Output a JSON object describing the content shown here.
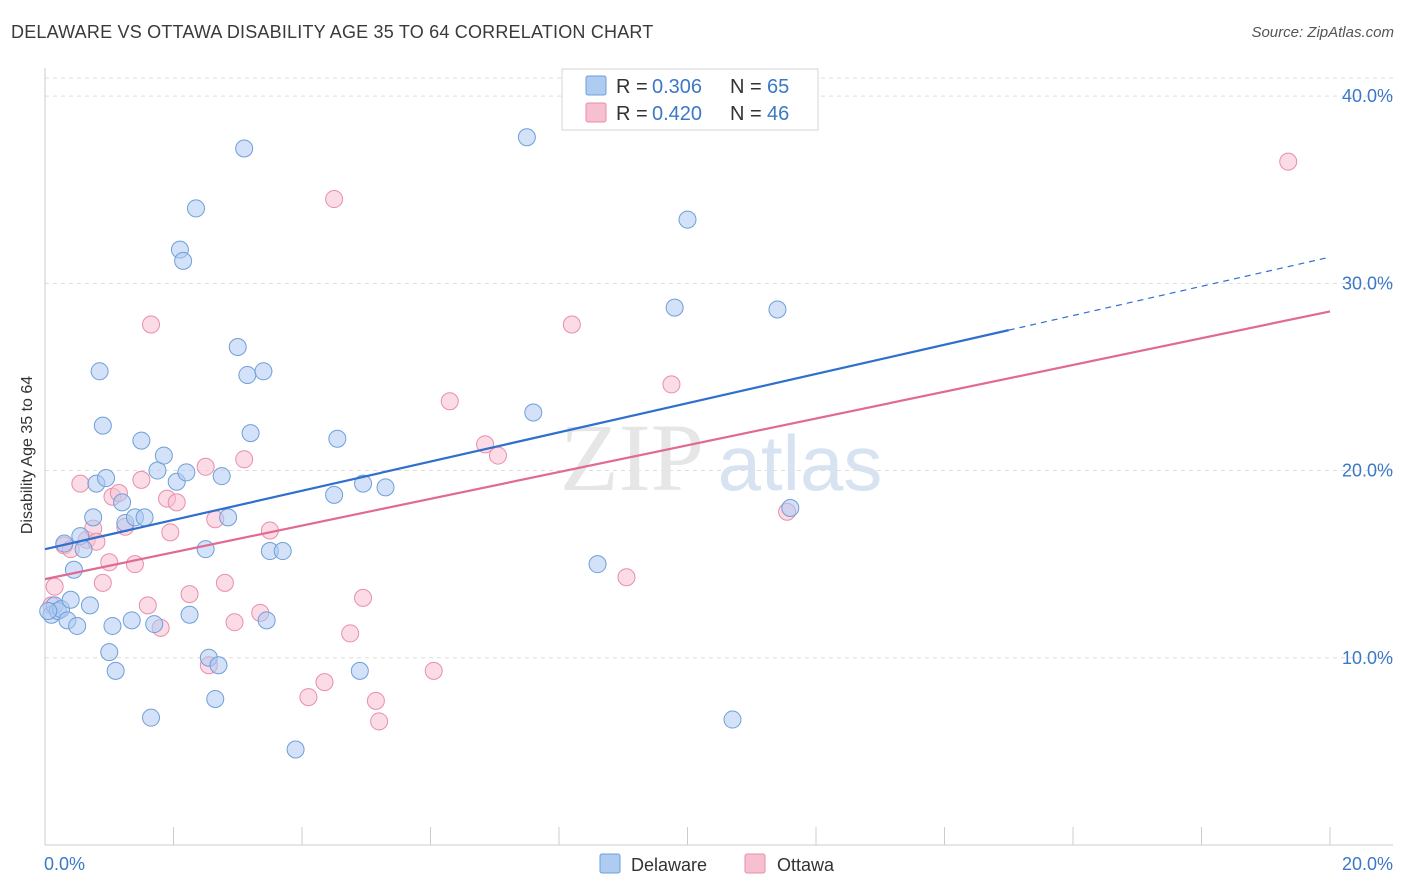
{
  "title": "DELAWARE VS OTTAWA DISABILITY AGE 35 TO 64 CORRELATION CHART",
  "source": "Source: ZipAtlas.com",
  "watermark": {
    "zip": "ZIP",
    "atlas": "atlas"
  },
  "colors": {
    "delaware_fill": "#aecbf2",
    "delaware_stroke": "#6f9fd8",
    "delaware_line": "#2f6fcd",
    "ottawa_fill": "#f7c0d1",
    "ottawa_stroke": "#e98ea9",
    "ottawa_line": "#e06a92",
    "axis_label": "#3b78c6",
    "grid": "#dddddd"
  },
  "legend": {
    "entries": [
      {
        "r_label": "R =",
        "r_value": "0.306",
        "n_label": "N =",
        "n_value": "65"
      },
      {
        "r_label": "R =",
        "r_value": "0.420",
        "n_label": "N =",
        "n_value": "46"
      }
    ]
  },
  "chart_data": {
    "type": "scatter",
    "title": "DELAWARE VS OTTAWA DISABILITY AGE 35 TO 64 CORRELATION CHART",
    "xlabel": "",
    "ylabel": "Disability Age 35 to 64",
    "xlim": [
      0,
      20
    ],
    "ylim": [
      0,
      41.5
    ],
    "x_ticks": [
      0,
      2,
      4,
      6,
      8,
      10,
      12,
      14,
      16,
      18,
      20
    ],
    "x_tick_labels": [
      {
        "value": 0,
        "label": "0.0%"
      },
      {
        "value": 20,
        "label": "20.0%"
      }
    ],
    "y_ticks": [
      {
        "value": 10,
        "label": "10.0%"
      },
      {
        "value": 20,
        "label": "20.0%"
      },
      {
        "value": 30,
        "label": "30.0%"
      },
      {
        "value": 40,
        "label": "40.0%"
      }
    ],
    "grid": true,
    "legend_position": "bottom",
    "series": [
      {
        "name": "Delaware",
        "r": 0.306,
        "n": 65,
        "trend": {
          "x0": 0,
          "y0": 15.8,
          "x1": 15.0,
          "y1": 27.5,
          "dash_to_x": 20,
          "dash_to_y": 31.4
        },
        "points": [
          [
            0.1,
            12.3
          ],
          [
            0.15,
            12.8
          ],
          [
            0.2,
            12.5
          ],
          [
            0.25,
            12.6
          ],
          [
            0.3,
            16.1
          ],
          [
            0.35,
            12.0
          ],
          [
            0.4,
            13.1
          ],
          [
            0.45,
            14.7
          ],
          [
            0.5,
            11.7
          ],
          [
            0.55,
            16.5
          ],
          [
            0.6,
            15.8
          ],
          [
            0.7,
            12.8
          ],
          [
            0.75,
            17.5
          ],
          [
            0.8,
            19.3
          ],
          [
            0.85,
            25.3
          ],
          [
            0.9,
            22.4
          ],
          [
            0.95,
            19.6
          ],
          [
            1.0,
            10.3
          ],
          [
            1.05,
            11.7
          ],
          [
            1.1,
            9.3
          ],
          [
            1.2,
            18.3
          ],
          [
            1.25,
            17.2
          ],
          [
            1.35,
            12.0
          ],
          [
            1.4,
            17.5
          ],
          [
            1.5,
            21.6
          ],
          [
            1.55,
            17.5
          ],
          [
            1.65,
            6.8
          ],
          [
            1.7,
            11.8
          ],
          [
            1.75,
            20.0
          ],
          [
            1.85,
            20.8
          ],
          [
            2.05,
            19.4
          ],
          [
            2.1,
            31.8
          ],
          [
            2.15,
            31.2
          ],
          [
            2.2,
            19.9
          ],
          [
            2.25,
            12.3
          ],
          [
            2.35,
            34.0
          ],
          [
            2.5,
            15.8
          ],
          [
            2.55,
            10.0
          ],
          [
            2.65,
            7.8
          ],
          [
            2.7,
            9.6
          ],
          [
            2.75,
            19.7
          ],
          [
            2.85,
            17.5
          ],
          [
            3.0,
            26.6
          ],
          [
            3.1,
            37.2
          ],
          [
            3.15,
            25.1
          ],
          [
            3.2,
            22.0
          ],
          [
            3.4,
            25.3
          ],
          [
            3.45,
            12.0
          ],
          [
            3.5,
            15.7
          ],
          [
            3.7,
            15.7
          ],
          [
            3.9,
            5.1
          ],
          [
            4.5,
            18.7
          ],
          [
            4.55,
            21.7
          ],
          [
            4.9,
            9.3
          ],
          [
            4.95,
            19.3
          ],
          [
            5.3,
            19.1
          ],
          [
            7.5,
            37.8
          ],
          [
            7.6,
            23.1
          ],
          [
            8.6,
            15.0
          ],
          [
            9.8,
            28.7
          ],
          [
            10.0,
            33.4
          ],
          [
            10.7,
            6.7
          ],
          [
            11.4,
            28.6
          ],
          [
            11.6,
            18.0
          ],
          [
            0.05,
            12.5
          ]
        ]
      },
      {
        "name": "Ottawa",
        "r": 0.42,
        "n": 46,
        "trend": {
          "x0": 0,
          "y0": 14.2,
          "x1": 20,
          "y1": 28.5
        },
        "points": [
          [
            0.1,
            12.8
          ],
          [
            0.15,
            13.8
          ],
          [
            0.3,
            16.0
          ],
          [
            0.4,
            15.8
          ],
          [
            0.55,
            19.3
          ],
          [
            0.65,
            16.3
          ],
          [
            0.75,
            16.9
          ],
          [
            0.8,
            16.2
          ],
          [
            0.9,
            14.0
          ],
          [
            1.0,
            15.1
          ],
          [
            1.05,
            18.6
          ],
          [
            1.15,
            18.8
          ],
          [
            1.25,
            17.0
          ],
          [
            1.4,
            15.0
          ],
          [
            1.5,
            19.5
          ],
          [
            1.6,
            12.8
          ],
          [
            1.65,
            27.8
          ],
          [
            1.8,
            11.6
          ],
          [
            1.9,
            18.5
          ],
          [
            1.95,
            16.7
          ],
          [
            2.05,
            18.3
          ],
          [
            2.25,
            13.4
          ],
          [
            2.5,
            20.2
          ],
          [
            2.55,
            9.6
          ],
          [
            2.65,
            17.4
          ],
          [
            2.8,
            14.0
          ],
          [
            2.95,
            11.9
          ],
          [
            3.1,
            20.6
          ],
          [
            3.35,
            12.4
          ],
          [
            3.5,
            16.8
          ],
          [
            4.1,
            7.9
          ],
          [
            4.35,
            8.7
          ],
          [
            4.5,
            34.5
          ],
          [
            4.75,
            11.3
          ],
          [
            4.95,
            13.2
          ],
          [
            5.15,
            7.7
          ],
          [
            5.2,
            6.6
          ],
          [
            6.05,
            9.3
          ],
          [
            6.3,
            23.7
          ],
          [
            6.85,
            21.4
          ],
          [
            7.05,
            20.8
          ],
          [
            8.2,
            27.8
          ],
          [
            9.05,
            14.3
          ],
          [
            9.75,
            24.6
          ],
          [
            11.55,
            17.8
          ],
          [
            19.35,
            36.5
          ]
        ]
      }
    ]
  }
}
